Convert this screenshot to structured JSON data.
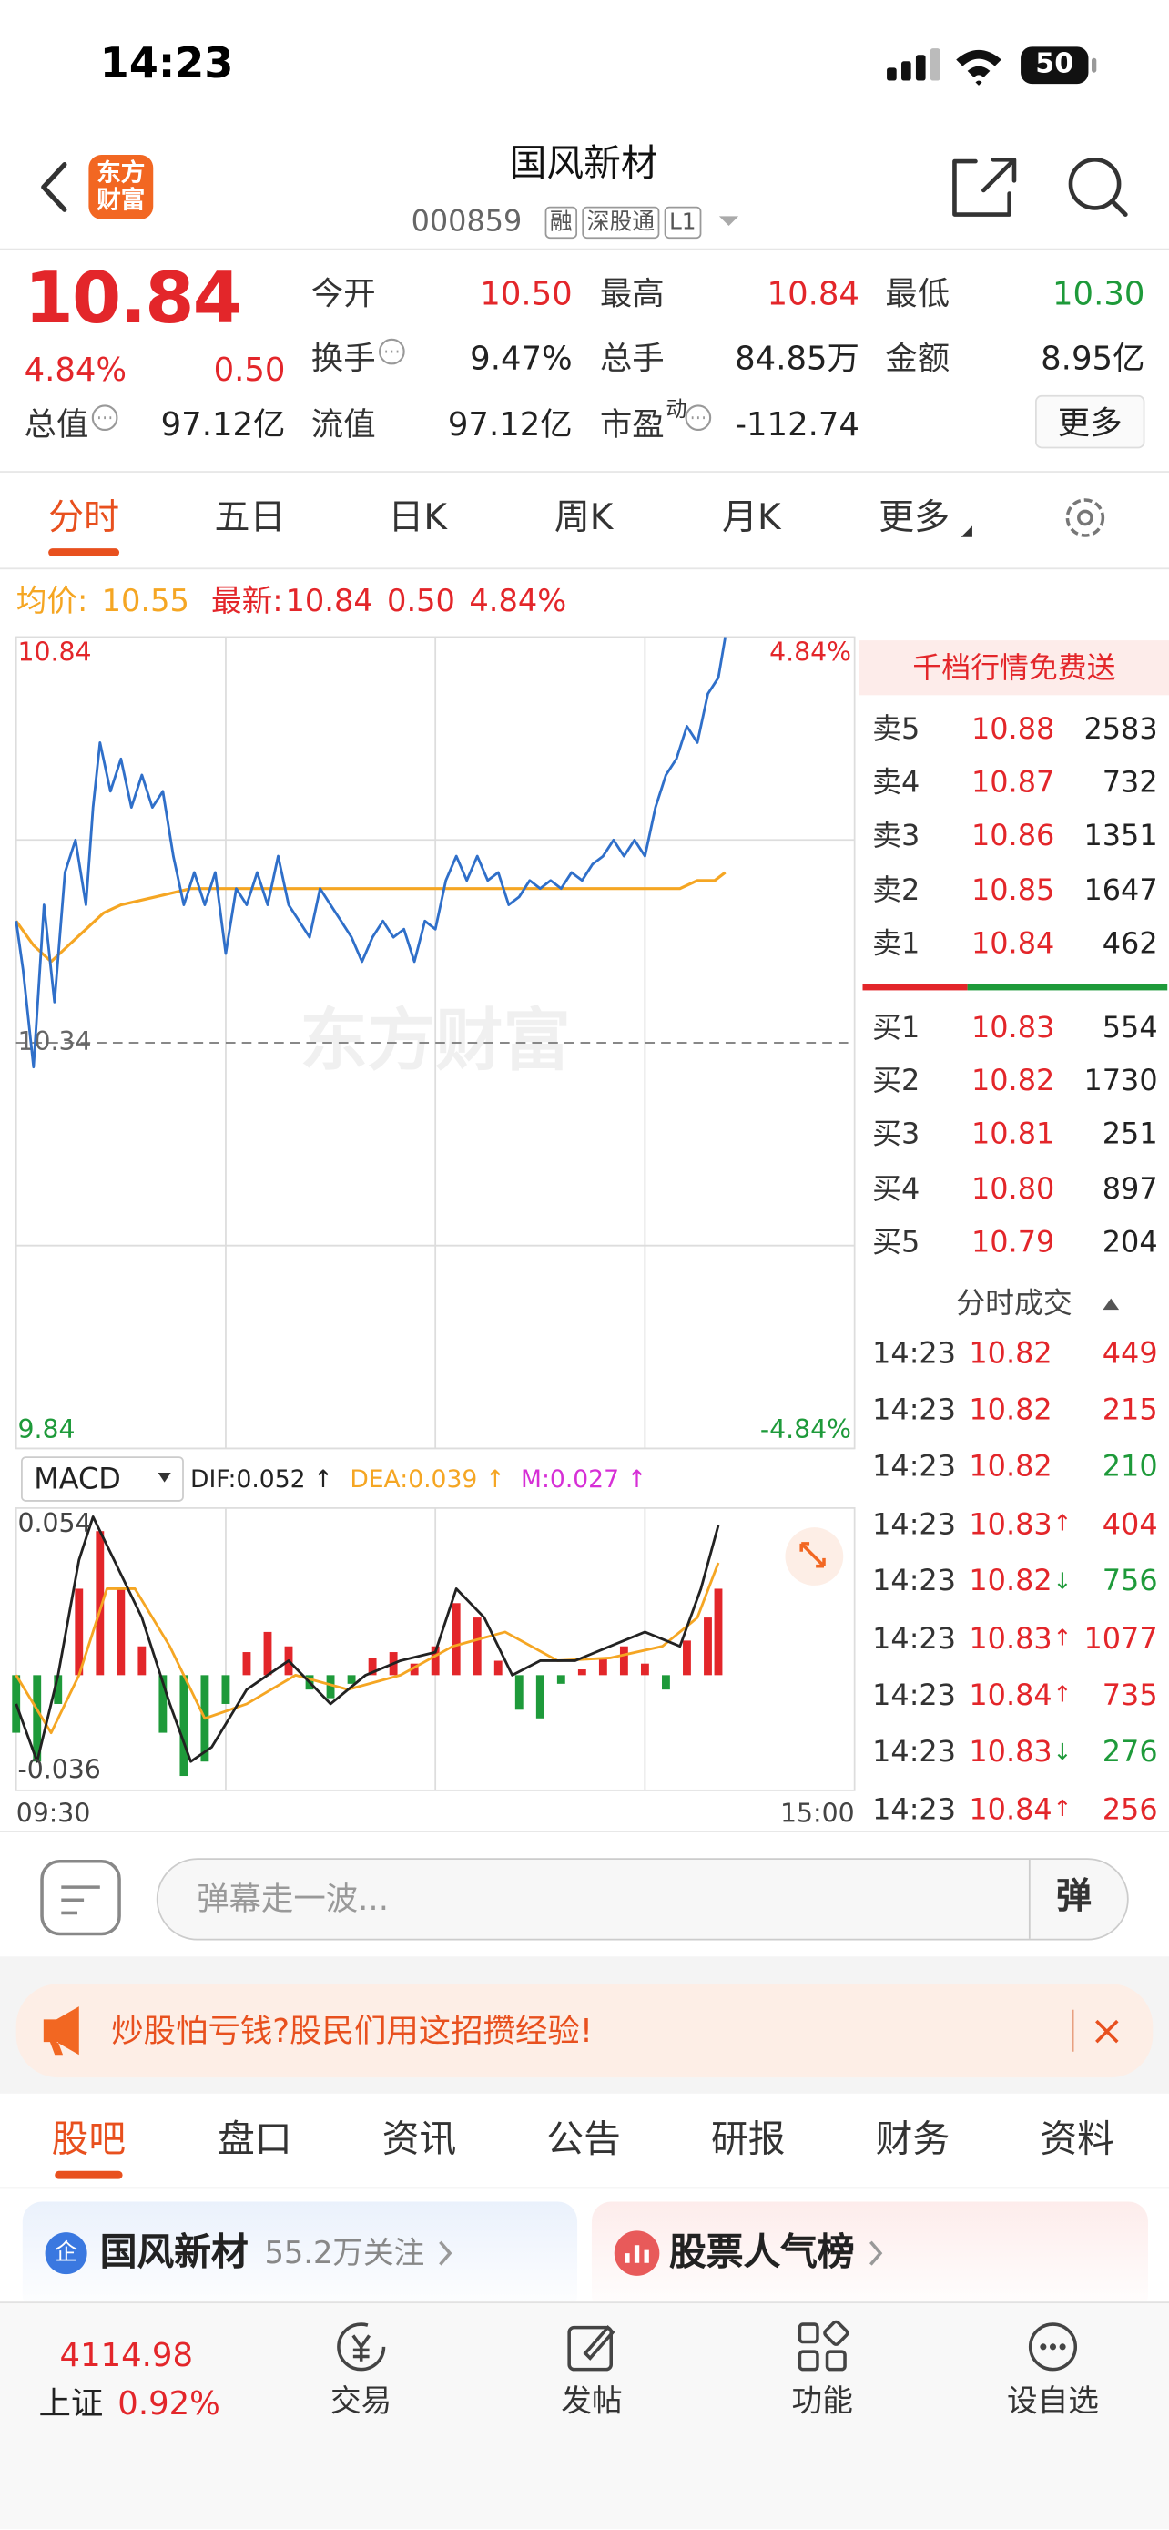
{
  "status": {
    "time": "14:23",
    "battery": "50"
  },
  "header": {
    "logo": "东方财富",
    "title": "国风新材",
    "code": "000859",
    "tags": [
      "融",
      "深股通",
      "L1"
    ]
  },
  "quote": {
    "price": "10.84",
    "change_pct": "4.84%",
    "change": "0.50",
    "fields": [
      {
        "label": "今开",
        "value": "10.50",
        "color": "#e3262a"
      },
      {
        "label": "最高",
        "value": "10.84",
        "color": "#e3262a"
      },
      {
        "label": "最低",
        "value": "10.30",
        "color": "#1e9a3a"
      },
      {
        "label": "换手",
        "value": "9.47%"
      },
      {
        "label": "总手",
        "value": "84.85万"
      },
      {
        "label": "金额",
        "value": "8.95亿"
      },
      {
        "label": "总值",
        "value": "97.12亿"
      },
      {
        "label": "流值",
        "value": "97.12亿"
      },
      {
        "label": "市盈",
        "sup": "动",
        "value": "-112.74"
      }
    ],
    "more": "更多"
  },
  "tabs": [
    "分时",
    "五日",
    "日K",
    "周K",
    "月K",
    "更多"
  ],
  "summary": {
    "avg_label": "均价:",
    "avg": "10.55",
    "last_label": "最新:",
    "last": "10.84",
    "change": "0.50",
    "change_pct": "4.84%"
  },
  "watermark": "东方财富",
  "chart_data": [
    {
      "type": "line",
      "xlim": [
        0,
        240
      ],
      "ylim": [
        9.84,
        10.84
      ],
      "yticks": [
        9.84,
        10.34,
        10.84
      ],
      "y2lim": [
        -4.84,
        4.84
      ],
      "y2ticks": [
        {
          "value": -4.84,
          "label": "-4.84%"
        },
        {
          "value": 4.84,
          "label": "4.84%"
        }
      ],
      "grid": true,
      "series": [
        {
          "color": "#2f6fc9",
          "x": [
            0,
            2,
            5,
            8,
            11,
            14,
            17,
            20,
            22,
            24,
            27,
            30,
            33,
            36,
            39,
            42,
            45,
            48,
            51,
            54,
            57,
            60,
            63,
            66,
            69,
            72,
            75,
            78,
            81,
            84,
            87,
            90,
            93,
            96,
            99,
            102,
            105,
            108,
            111,
            114,
            117,
            120,
            123,
            126,
            129,
            132,
            135,
            138,
            141,
            144,
            147,
            150,
            153,
            156,
            159,
            162,
            165,
            168,
            171,
            174,
            177,
            180,
            183,
            186,
            189,
            192,
            195,
            198,
            201,
            203
          ],
          "values": [
            10.49,
            10.43,
            10.31,
            10.51,
            10.39,
            10.55,
            10.59,
            10.51,
            10.63,
            10.71,
            10.65,
            10.69,
            10.63,
            10.67,
            10.63,
            10.65,
            10.57,
            10.51,
            10.55,
            10.51,
            10.55,
            10.45,
            10.53,
            10.51,
            10.55,
            10.51,
            10.57,
            10.51,
            10.49,
            10.47,
            10.53,
            10.51,
            10.49,
            10.47,
            10.44,
            10.47,
            10.49,
            10.47,
            10.48,
            10.44,
            10.49,
            10.48,
            10.54,
            10.57,
            10.54,
            10.57,
            10.54,
            10.55,
            10.51,
            10.52,
            10.54,
            10.53,
            10.54,
            10.53,
            10.55,
            10.54,
            10.56,
            10.57,
            10.59,
            10.57,
            10.59,
            10.57,
            10.63,
            10.67,
            10.69,
            10.73,
            10.71,
            10.77,
            10.79,
            10.84
          ]
        },
        {
          "color": "#f5a623",
          "x": [
            0,
            5,
            10,
            15,
            20,
            25,
            30,
            40,
            50,
            60,
            90,
            120,
            150,
            180,
            190,
            195,
            200,
            203
          ],
          "values": [
            10.49,
            10.46,
            10.44,
            10.46,
            10.48,
            10.5,
            10.51,
            10.52,
            10.53,
            10.53,
            10.53,
            10.53,
            10.53,
            10.53,
            10.53,
            10.54,
            10.54,
            10.55
          ]
        }
      ]
    },
    {
      "type": "macd",
      "title": "MACD",
      "legend": [
        {
          "label": "DIF:0.052 ↑",
          "color": "#222222"
        },
        {
          "label": "DEA:0.039 ↑",
          "color": "#f5a623"
        },
        {
          "label": "M:0.027 ↑",
          "color": "#d62fd6"
        }
      ],
      "xlim": [
        0,
        240
      ],
      "xticks": [
        {
          "value": 0,
          "label": "09:30"
        },
        {
          "value": 240,
          "label": "15:00"
        }
      ],
      "ylim": [
        -0.04,
        0.058
      ],
      "yticks": [
        -0.036,
        0.054
      ],
      "bars": {
        "up_color": "#e3262a",
        "down_color": "#1e9a3a",
        "x": [
          0,
          6,
          12,
          18,
          24,
          30,
          36,
          42,
          48,
          54,
          60,
          66,
          72,
          78,
          84,
          90,
          96,
          102,
          108,
          114,
          120,
          126,
          132,
          138,
          144,
          150,
          156,
          162,
          168,
          174,
          180,
          186,
          192,
          198,
          201
        ],
        "values": [
          -0.02,
          -0.03,
          -0.01,
          0.03,
          0.05,
          0.03,
          0.01,
          -0.02,
          -0.035,
          -0.03,
          -0.01,
          0.008,
          0.015,
          0.01,
          -0.005,
          -0.008,
          -0.003,
          0.006,
          0.008,
          0.004,
          0.01,
          0.025,
          0.02,
          0.005,
          -0.012,
          -0.015,
          -0.003,
          0.002,
          0.006,
          0.01,
          0.004,
          -0.005,
          0.012,
          0.02,
          0.03
        ]
      },
      "series": [
        {
          "color": "#222222",
          "x": [
            0,
            6,
            12,
            18,
            22,
            28,
            36,
            44,
            50,
            56,
            66,
            78,
            90,
            100,
            110,
            120,
            126,
            134,
            142,
            150,
            160,
            170,
            180,
            190,
            196,
            201
          ],
          "values": [
            -0.01,
            -0.03,
            0.0,
            0.04,
            0.055,
            0.04,
            0.02,
            -0.01,
            -0.03,
            -0.025,
            -0.005,
            0.005,
            -0.01,
            0.0,
            0.005,
            0.008,
            0.03,
            0.02,
            0.0,
            0.005,
            0.005,
            0.01,
            0.015,
            0.01,
            0.03,
            0.052
          ]
        },
        {
          "color": "#f5a623",
          "x": [
            0,
            10,
            18,
            26,
            34,
            44,
            54,
            66,
            80,
            95,
            110,
            125,
            140,
            155,
            170,
            185,
            195,
            201
          ],
          "values": [
            0.0,
            -0.02,
            0.0,
            0.03,
            0.03,
            0.01,
            -0.015,
            -0.01,
            0.0,
            -0.005,
            0.0,
            0.01,
            0.015,
            0.005,
            0.006,
            0.01,
            0.02,
            0.039
          ]
        }
      ]
    }
  ],
  "orderbook": {
    "promo": "千档行情免费送",
    "asks": [
      {
        "label": "卖5",
        "price": "10.88",
        "volume": "2583"
      },
      {
        "label": "卖4",
        "price": "10.87",
        "volume": "732"
      },
      {
        "label": "卖3",
        "price": "10.86",
        "volume": "1351"
      },
      {
        "label": "卖2",
        "price": "10.85",
        "volume": "1647"
      },
      {
        "label": "卖1",
        "price": "10.84",
        "volume": "462"
      }
    ],
    "bids": [
      {
        "label": "买1",
        "price": "10.83",
        "volume": "554"
      },
      {
        "label": "买2",
        "price": "10.82",
        "volume": "1730"
      },
      {
        "label": "买3",
        "price": "10.81",
        "volume": "251"
      },
      {
        "label": "买4",
        "price": "10.80",
        "volume": "897"
      },
      {
        "label": "买5",
        "price": "10.79",
        "volume": "204"
      }
    ],
    "trades_title": "分时成交",
    "trades": [
      {
        "time": "14:23",
        "price": "10.82",
        "volume": "449",
        "color": "#e3262a"
      },
      {
        "time": "14:23",
        "price": "10.82",
        "volume": "215",
        "color": "#e3262a"
      },
      {
        "time": "14:23",
        "price": "10.82",
        "volume": "210",
        "color": "#1e9a3a"
      },
      {
        "time": "14:23",
        "price": "10.83",
        "arrow": "↑",
        "arrow_color": "#e3262a",
        "volume": "404",
        "color": "#e3262a"
      },
      {
        "time": "14:23",
        "price": "10.82",
        "arrow": "↓",
        "arrow_color": "#1e9a3a",
        "volume": "756",
        "color": "#1e9a3a"
      },
      {
        "time": "14:23",
        "price": "10.83",
        "arrow": "↑",
        "arrow_color": "#e3262a",
        "volume": "1077",
        "color": "#e3262a"
      },
      {
        "time": "14:23",
        "price": "10.84",
        "arrow": "↑",
        "arrow_color": "#e3262a",
        "volume": "735",
        "color": "#e3262a"
      },
      {
        "time": "14:23",
        "price": "10.83",
        "arrow": "↓",
        "arrow_color": "#1e9a3a",
        "volume": "276",
        "color": "#1e9a3a"
      },
      {
        "time": "14:23",
        "price": "10.84",
        "arrow": "↑",
        "arrow_color": "#e3262a",
        "volume": "256",
        "color": "#e3262a"
      }
    ]
  },
  "comment": {
    "placeholder": "弹幕走一波...",
    "button": "弹"
  },
  "ad": {
    "text": "炒股怕亏钱?股民们用这招攒经验!"
  },
  "sections": [
    "股吧",
    "盘口",
    "资讯",
    "公告",
    "研报",
    "财务",
    "资料"
  ],
  "cards": [
    {
      "icon": "企",
      "title": "国风新材",
      "subtitle": "55.2万关注"
    },
    {
      "title": "股票人气榜"
    }
  ],
  "bottom": {
    "index_value": "4114.98",
    "index_name": "上证",
    "index_change": "0.92%",
    "nav": [
      "交易",
      "发帖",
      "功能",
      "设自选"
    ]
  }
}
